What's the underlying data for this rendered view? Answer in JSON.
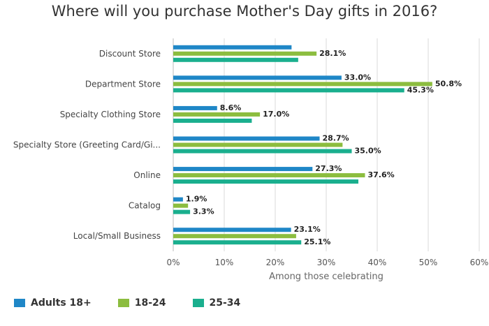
{
  "chart_data": {
    "type": "bar",
    "orientation": "horizontal",
    "title": "Where will you purchase Mother's Day gifts in 2016?",
    "xlabel": "Among those celebrating",
    "ylabel": "",
    "xlim": [
      0,
      60
    ],
    "xticks": [
      "0%",
      "10%",
      "20%",
      "30%",
      "40%",
      "50%",
      "60%"
    ],
    "grid": true,
    "legend_position": "bottom-left",
    "categories": [
      "Discount Store",
      "Department Store",
      "Specialty Clothing Store",
      "Specialty Store (Greeting Card/Gi...",
      "Online",
      "Catalog",
      "Local/Small Business"
    ],
    "series": [
      {
        "name": "Adults 18+",
        "color": "#1f87c7",
        "values": [
          23.2,
          33.0,
          8.6,
          28.7,
          27.3,
          1.9,
          23.1
        ]
      },
      {
        "name": "18-24",
        "color": "#8cbd3f",
        "values": [
          28.1,
          50.8,
          17.0,
          33.2,
          37.6,
          2.9,
          24.1
        ]
      },
      {
        "name": "25-34",
        "color": "#1aaf8e",
        "values": [
          24.5,
          45.3,
          15.4,
          35.0,
          36.3,
          3.3,
          25.1
        ]
      }
    ],
    "data_labels": [
      [
        null,
        "33.0%",
        "8.6%",
        "28.7%",
        "27.3%",
        "1.9%",
        "23.1%"
      ],
      [
        "28.1%",
        "50.8%",
        "17.0%",
        null,
        "37.6%",
        null,
        null
      ],
      [
        null,
        "45.3%",
        null,
        "35.0%",
        null,
        "3.3%",
        "25.1%"
      ]
    ]
  }
}
